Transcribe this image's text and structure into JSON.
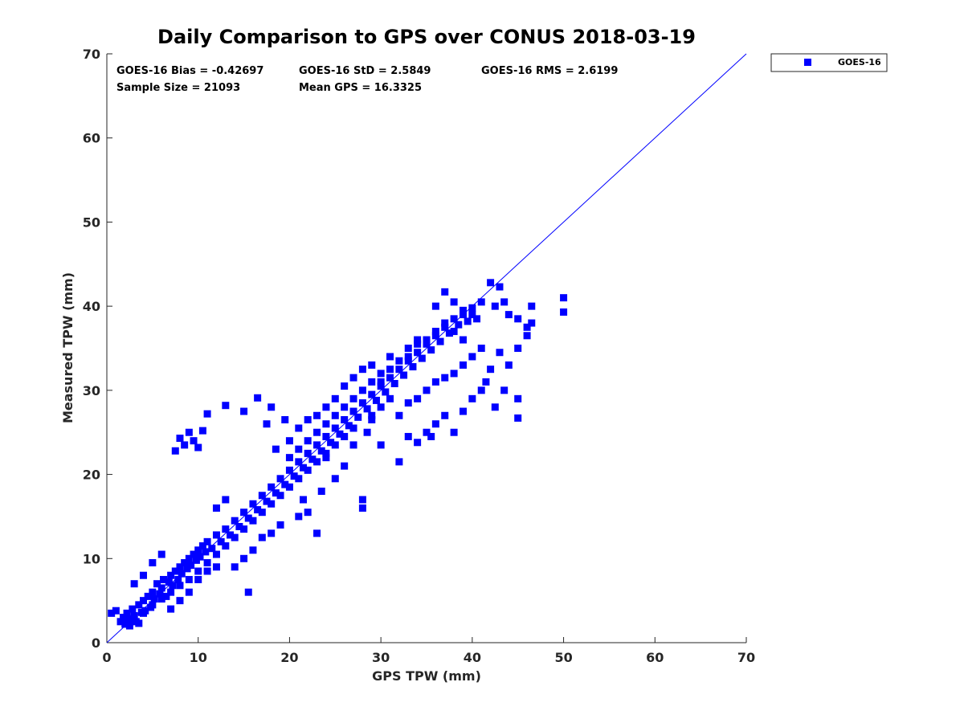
{
  "chart_data": {
    "type": "scatter",
    "title": "Daily Comparison to GPS over CONUS 2018-03-19",
    "xlabel": "GPS TPW (mm)",
    "ylabel": "Measured TPW (mm)",
    "xlim": [
      0,
      70
    ],
    "ylim": [
      0,
      70
    ],
    "xticks": [
      0,
      10,
      20,
      30,
      40,
      50,
      60,
      70
    ],
    "yticks": [
      0,
      10,
      20,
      30,
      40,
      50,
      60,
      70
    ],
    "xtick_labels": [
      "0",
      "10",
      "20",
      "30",
      "40",
      "50",
      "60",
      "70"
    ],
    "ytick_labels": [
      "0",
      "10",
      "20",
      "30",
      "40",
      "50",
      "60",
      "70"
    ],
    "grid": false,
    "legend_position": "outside-top-right",
    "reference_line": {
      "x": [
        0,
        70
      ],
      "y": [
        0,
        70
      ]
    },
    "stats": [
      "GOES-16 Bias = -0.42697",
      "GOES-16 StD = 2.5849",
      "GOES-16 RMS = 2.6199",
      "Sample Size = 21093",
      "Mean GPS = 16.3325"
    ],
    "series": [
      {
        "name": "GOES-16",
        "color": "#0000ff",
        "marker": "square",
        "points": [
          [
            0.5,
            3.5
          ],
          [
            1.0,
            3.8
          ],
          [
            1.5,
            2.5
          ],
          [
            1.8,
            3.0
          ],
          [
            2.0,
            2.2
          ],
          [
            2.2,
            3.5
          ],
          [
            2.5,
            2.8
          ],
          [
            2.8,
            4.0
          ],
          [
            3.0,
            3.2
          ],
          [
            3.2,
            2.5
          ],
          [
            3.5,
            4.5
          ],
          [
            3.8,
            3.6
          ],
          [
            4.0,
            5.0
          ],
          [
            4.2,
            3.8
          ],
          [
            4.5,
            5.5
          ],
          [
            4.8,
            4.2
          ],
          [
            5.0,
            6.0
          ],
          [
            5.2,
            5.2
          ],
          [
            5.5,
            7.0
          ],
          [
            5.8,
            5.8
          ],
          [
            6.0,
            6.5
          ],
          [
            6.2,
            7.5
          ],
          [
            6.5,
            5.5
          ],
          [
            6.8,
            7.2
          ],
          [
            7.0,
            8.0
          ],
          [
            7.2,
            6.8
          ],
          [
            7.5,
            8.5
          ],
          [
            7.8,
            7.5
          ],
          [
            8.0,
            9.0
          ],
          [
            8.2,
            8.2
          ],
          [
            8.5,
            9.5
          ],
          [
            8.8,
            8.8
          ],
          [
            9.0,
            10.0
          ],
          [
            9.2,
            9.2
          ],
          [
            9.5,
            10.5
          ],
          [
            9.8,
            9.8
          ],
          [
            10.0,
            11.0
          ],
          [
            10.2,
            10.2
          ],
          [
            10.5,
            11.5
          ],
          [
            10.8,
            10.8
          ],
          [
            11.0,
            12.0
          ],
          [
            11.5,
            11.2
          ],
          [
            12.0,
            12.8
          ],
          [
            12.5,
            12.0
          ],
          [
            13.0,
            13.5
          ],
          [
            13.5,
            12.8
          ],
          [
            14.0,
            14.5
          ],
          [
            14.5,
            13.8
          ],
          [
            15.0,
            15.5
          ],
          [
            15.5,
            14.8
          ],
          [
            16.0,
            16.5
          ],
          [
            16.5,
            15.8
          ],
          [
            17.0,
            17.5
          ],
          [
            17.5,
            16.8
          ],
          [
            18.0,
            18.5
          ],
          [
            18.5,
            17.8
          ],
          [
            19.0,
            19.5
          ],
          [
            19.5,
            18.8
          ],
          [
            20.0,
            20.5
          ],
          [
            20.5,
            19.8
          ],
          [
            21.0,
            21.5
          ],
          [
            21.5,
            20.8
          ],
          [
            22.0,
            22.5
          ],
          [
            22.5,
            21.8
          ],
          [
            23.0,
            23.5
          ],
          [
            23.5,
            22.8
          ],
          [
            24.0,
            24.5
          ],
          [
            24.5,
            23.8
          ],
          [
            25.0,
            25.5
          ],
          [
            25.5,
            24.8
          ],
          [
            26.0,
            26.5
          ],
          [
            26.5,
            25.8
          ],
          [
            27.0,
            27.5
          ],
          [
            27.5,
            26.8
          ],
          [
            28.0,
            28.5
          ],
          [
            28.5,
            27.8
          ],
          [
            29.0,
            29.5
          ],
          [
            29.5,
            28.8
          ],
          [
            30.0,
            30.5
          ],
          [
            30.5,
            29.8
          ],
          [
            31.0,
            31.5
          ],
          [
            31.5,
            30.8
          ],
          [
            32.0,
            32.5
          ],
          [
            32.5,
            31.8
          ],
          [
            33.0,
            33.5
          ],
          [
            33.5,
            32.8
          ],
          [
            34.0,
            34.5
          ],
          [
            34.5,
            33.8
          ],
          [
            35.0,
            35.5
          ],
          [
            35.5,
            34.8
          ],
          [
            36.0,
            36.5
          ],
          [
            36.5,
            35.8
          ],
          [
            37.0,
            37.5
          ],
          [
            37.5,
            36.8
          ],
          [
            38.0,
            38.5
          ],
          [
            38.5,
            37.8
          ],
          [
            39.0,
            39.0
          ],
          [
            39.5,
            38.2
          ],
          [
            40.0,
            39.0
          ],
          [
            40.5,
            38.5
          ],
          [
            3.0,
            7.0
          ],
          [
            4.0,
            8.0
          ],
          [
            5.0,
            9.5
          ],
          [
            6.0,
            10.5
          ],
          [
            7.0,
            4.0
          ],
          [
            8.0,
            5.0
          ],
          [
            9.0,
            6.0
          ],
          [
            10.0,
            7.5
          ],
          [
            11.0,
            8.5
          ],
          [
            12.0,
            9.0
          ],
          [
            12.0,
            16.0
          ],
          [
            13.0,
            17.0
          ],
          [
            14.0,
            9.0
          ],
          [
            15.0,
            10.0
          ],
          [
            15.5,
            6.0
          ],
          [
            16.0,
            11.0
          ],
          [
            17.0,
            12.5
          ],
          [
            18.0,
            13.0
          ],
          [
            18.5,
            23.0
          ],
          [
            19.0,
            14.0
          ],
          [
            7.5,
            22.8
          ],
          [
            8.0,
            24.3
          ],
          [
            8.5,
            23.5
          ],
          [
            9.0,
            25.0
          ],
          [
            9.5,
            24.0
          ],
          [
            10.0,
            23.2
          ],
          [
            10.5,
            25.2
          ],
          [
            11.0,
            27.2
          ],
          [
            13.0,
            28.2
          ],
          [
            15.0,
            27.5
          ],
          [
            16.5,
            29.1
          ],
          [
            17.5,
            26.0
          ],
          [
            18.0,
            28.0
          ],
          [
            19.5,
            26.5
          ],
          [
            20.0,
            24.0
          ],
          [
            21.0,
            15.0
          ],
          [
            21.5,
            17.0
          ],
          [
            22.0,
            15.5
          ],
          [
            23.0,
            13.0
          ],
          [
            23.5,
            18.0
          ],
          [
            24.0,
            22.0
          ],
          [
            25.0,
            19.5
          ],
          [
            26.0,
            21.0
          ],
          [
            27.0,
            23.5
          ],
          [
            28.0,
            17.0
          ],
          [
            28.0,
            16.0
          ],
          [
            28.5,
            25.0
          ],
          [
            29.0,
            26.5
          ],
          [
            30.0,
            23.5
          ],
          [
            32.0,
            21.5
          ],
          [
            33.0,
            24.5
          ],
          [
            34.0,
            23.8
          ],
          [
            35.0,
            25.0
          ],
          [
            35.5,
            24.5
          ],
          [
            36.0,
            26.0
          ],
          [
            37.0,
            27.0
          ],
          [
            38.0,
            25.0
          ],
          [
            39.0,
            27.5
          ],
          [
            40.0,
            29.0
          ],
          [
            41.0,
            30.0
          ],
          [
            41.5,
            31.0
          ],
          [
            42.0,
            32.5
          ],
          [
            42.5,
            28.0
          ],
          [
            43.0,
            34.5
          ],
          [
            43.5,
            30.0
          ],
          [
            44.0,
            33.0
          ],
          [
            45.0,
            35.0
          ],
          [
            45.0,
            29.0
          ],
          [
            45.0,
            26.7
          ],
          [
            46.0,
            36.5
          ],
          [
            36.0,
            40.0
          ],
          [
            37.0,
            41.7
          ],
          [
            38.0,
            40.5
          ],
          [
            39.0,
            39.5
          ],
          [
            40.0,
            39.8
          ],
          [
            41.0,
            40.5
          ],
          [
            42.0,
            42.8
          ],
          [
            42.5,
            40.0
          ],
          [
            43.0,
            42.3
          ],
          [
            43.5,
            40.5
          ],
          [
            44.0,
            39.0
          ],
          [
            45.0,
            38.5
          ],
          [
            46.0,
            37.5
          ],
          [
            46.5,
            38.0
          ],
          [
            46.5,
            40.0
          ],
          [
            50.0,
            41.0
          ],
          [
            50.0,
            39.3
          ],
          [
            33.0,
            35.0
          ],
          [
            34.0,
            36.0
          ],
          [
            31.0,
            34.0
          ],
          [
            28.0,
            32.5
          ],
          [
            29.0,
            33.0
          ],
          [
            30.0,
            31.0
          ],
          [
            26.0,
            30.5
          ],
          [
            27.0,
            31.5
          ],
          [
            25.0,
            29.0
          ],
          [
            24.0,
            28.0
          ],
          [
            22.0,
            26.5
          ],
          [
            23.0,
            27.0
          ],
          [
            21.0,
            25.5
          ],
          [
            32.0,
            27.0
          ],
          [
            33.0,
            28.5
          ],
          [
            34.0,
            29.0
          ],
          [
            35.0,
            30.0
          ],
          [
            36.0,
            31.0
          ],
          [
            37.0,
            31.5
          ],
          [
            38.0,
            32.0
          ],
          [
            39.0,
            33.0
          ],
          [
            40.0,
            34.0
          ],
          [
            41.0,
            35.0
          ],
          [
            30.0,
            28.0
          ],
          [
            31.0,
            29.0
          ],
          [
            29.0,
            27.0
          ],
          [
            27.0,
            25.5
          ],
          [
            26.0,
            24.5
          ],
          [
            25.0,
            23.5
          ],
          [
            24.0,
            22.5
          ],
          [
            23.0,
            21.5
          ],
          [
            22.0,
            20.5
          ],
          [
            21.0,
            19.5
          ],
          [
            20.0,
            18.5
          ],
          [
            19.0,
            17.5
          ],
          [
            18.0,
            16.5
          ],
          [
            17.0,
            15.5
          ],
          [
            16.0,
            14.5
          ],
          [
            15.0,
            13.5
          ],
          [
            14.0,
            12.5
          ],
          [
            13.0,
            11.5
          ],
          [
            12.0,
            10.5
          ],
          [
            11.0,
            9.5
          ],
          [
            10.0,
            8.5
          ],
          [
            9.0,
            7.5
          ],
          [
            8.0,
            6.8
          ],
          [
            7.0,
            6.0
          ],
          [
            6.0,
            5.2
          ],
          [
            5.0,
            4.5
          ],
          [
            4.0,
            3.5
          ],
          [
            3.0,
            2.8
          ],
          [
            2.5,
            2.0
          ],
          [
            3.5,
            2.3
          ],
          [
            20.0,
            22.0
          ],
          [
            21.0,
            23.0
          ],
          [
            22.0,
            24.0
          ],
          [
            23.0,
            25.0
          ],
          [
            24.0,
            26.0
          ],
          [
            25.0,
            27.0
          ],
          [
            26.0,
            28.0
          ],
          [
            27.0,
            29.0
          ],
          [
            28.0,
            30.0
          ],
          [
            29.0,
            31.0
          ],
          [
            30.0,
            32.0
          ],
          [
            31.0,
            32.5
          ],
          [
            32.0,
            33.5
          ],
          [
            33.0,
            34.0
          ],
          [
            34.0,
            35.5
          ],
          [
            35.0,
            36.0
          ],
          [
            36.0,
            37.0
          ],
          [
            37.0,
            38.0
          ],
          [
            38.0,
            37.0
          ],
          [
            39.0,
            36.0
          ]
        ]
      }
    ]
  }
}
